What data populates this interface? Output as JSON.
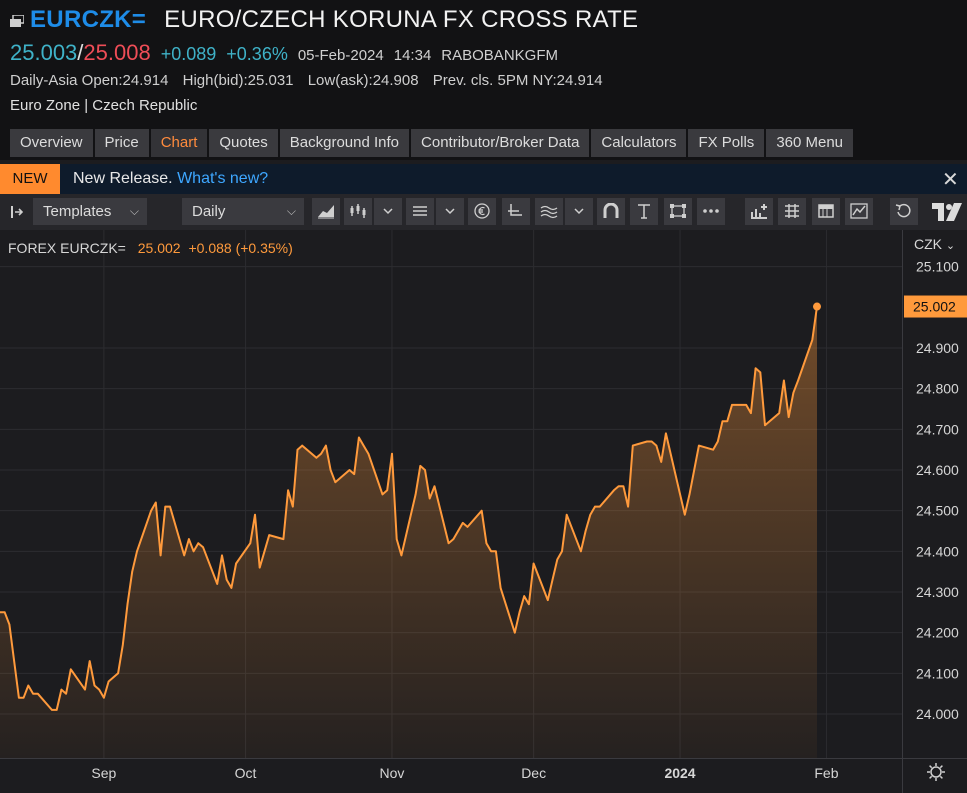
{
  "header": {
    "ric": "EURCZK=",
    "description": "EURO/CZECH KORUNA FX CROSS RATE",
    "bid": "25.003",
    "slash": "/",
    "ask": "25.008",
    "net_change": "+0.089",
    "pct_change": "+0.36%",
    "date": "05-Feb-2024",
    "time": "14:34",
    "source": "RABOBANKGFM",
    "daily_open": "Daily-Asia Open:24.914",
    "high": "High(bid):25.031",
    "low": "Low(ask):24.908",
    "prev_close": "Prev. cls. 5PM NY:24.914",
    "region": "Euro Zone | Czech Republic"
  },
  "tabs": [
    {
      "label": "Overview"
    },
    {
      "label": "Price"
    },
    {
      "label": "Chart",
      "active": true
    },
    {
      "label": "Quotes"
    },
    {
      "label": "Background Info"
    },
    {
      "label": "Contributor/Broker Data"
    },
    {
      "label": "Calculators"
    },
    {
      "label": "FX Polls"
    },
    {
      "label": "360 Menu"
    }
  ],
  "banner": {
    "badge": "NEW",
    "text": "New Release.",
    "link": "What's new?",
    "close": "✕"
  },
  "toolbar": {
    "templates_label": "Templates",
    "interval_label": "Daily"
  },
  "legend": {
    "name": "FOREX EURCZK=",
    "value": "25.002",
    "change": "+0.088 (+0.35%)"
  },
  "currency_label": "CZK",
  "colors": {
    "line": "#ff9a3c",
    "last_badge": "#ff9a3c",
    "bid": "#3fb2c8",
    "ask": "#ef4d57",
    "ric": "#1e8ce8",
    "active_tab": "#ff8b3d"
  },
  "chart_data": {
    "type": "area",
    "title": "",
    "xlabel": "",
    "ylabel": "",
    "currency": "CZK",
    "ylim": [
      23.93,
      25.14
    ],
    "yticks": [
      24.0,
      24.1,
      24.2,
      24.3,
      24.4,
      24.5,
      24.6,
      24.7,
      24.8,
      24.9,
      25.1
    ],
    "ytick_labels": [
      "24.000",
      "24.100",
      "24.200",
      "24.300",
      "24.400",
      "24.500",
      "24.600",
      "24.700",
      "24.800",
      "24.900",
      "25.100"
    ],
    "xlim": [
      "2023-08-10",
      "2024-02-17"
    ],
    "xticks": [
      {
        "date": "2023-09-01",
        "label": "Sep"
      },
      {
        "date": "2023-10-01",
        "label": "Oct"
      },
      {
        "date": "2023-11-01",
        "label": "Nov"
      },
      {
        "date": "2023-12-01",
        "label": "Dec"
      },
      {
        "date": "2024-01-01",
        "label": "2024"
      },
      {
        "date": "2024-02-01",
        "label": "Feb"
      }
    ],
    "last_value_label": "25.002",
    "series": [
      {
        "values": [
          [
            "2023-08-10",
            24.25
          ],
          [
            "2023-08-11",
            24.25
          ],
          [
            "2023-08-12",
            24.22
          ],
          [
            "2023-08-14",
            24.04
          ],
          [
            "2023-08-15",
            24.04
          ],
          [
            "2023-08-16",
            24.07
          ],
          [
            "2023-08-17",
            24.05
          ],
          [
            "2023-08-18",
            24.05
          ],
          [
            "2023-08-21",
            24.01
          ],
          [
            "2023-08-22",
            24.01
          ],
          [
            "2023-08-23",
            24.06
          ],
          [
            "2023-08-24",
            24.05
          ],
          [
            "2023-08-25",
            24.11
          ],
          [
            "2023-08-28",
            24.06
          ],
          [
            "2023-08-29",
            24.13
          ],
          [
            "2023-08-30",
            24.07
          ],
          [
            "2023-08-31",
            24.06
          ],
          [
            "2023-09-01",
            24.04
          ],
          [
            "2023-09-02",
            24.08
          ],
          [
            "2023-09-04",
            24.1
          ],
          [
            "2023-09-05",
            24.17
          ],
          [
            "2023-09-06",
            24.27
          ],
          [
            "2023-09-07",
            24.35
          ],
          [
            "2023-09-08",
            24.4
          ],
          [
            "2023-09-11",
            24.5
          ],
          [
            "2023-09-12",
            24.52
          ],
          [
            "2023-09-13",
            24.39
          ],
          [
            "2023-09-14",
            24.51
          ],
          [
            "2023-09-15",
            24.51
          ],
          [
            "2023-09-18",
            24.39
          ],
          [
            "2023-09-19",
            24.43
          ],
          [
            "2023-09-20",
            24.4
          ],
          [
            "2023-09-21",
            24.42
          ],
          [
            "2023-09-22",
            24.41
          ],
          [
            "2023-09-25",
            24.32
          ],
          [
            "2023-09-26",
            24.39
          ],
          [
            "2023-09-27",
            24.33
          ],
          [
            "2023-09-28",
            24.31
          ],
          [
            "2023-09-29",
            24.37
          ],
          [
            "2023-10-02",
            24.42
          ],
          [
            "2023-10-03",
            24.49
          ],
          [
            "2023-10-04",
            24.36
          ],
          [
            "2023-10-05",
            24.4
          ],
          [
            "2023-10-06",
            24.44
          ],
          [
            "2023-10-09",
            24.43
          ],
          [
            "2023-10-10",
            24.55
          ],
          [
            "2023-10-11",
            24.51
          ],
          [
            "2023-10-12",
            24.65
          ],
          [
            "2023-10-13",
            24.66
          ],
          [
            "2023-10-16",
            24.63
          ],
          [
            "2023-10-17",
            24.64
          ],
          [
            "2023-10-18",
            24.66
          ],
          [
            "2023-10-19",
            24.6
          ],
          [
            "2023-10-20",
            24.57
          ],
          [
            "2023-10-23",
            24.6
          ],
          [
            "2023-10-24",
            24.59
          ],
          [
            "2023-10-25",
            24.68
          ],
          [
            "2023-10-26",
            24.66
          ],
          [
            "2023-10-27",
            24.64
          ],
          [
            "2023-10-30",
            24.54
          ],
          [
            "2023-10-31",
            24.55
          ],
          [
            "2023-11-01",
            24.64
          ],
          [
            "2023-11-02",
            24.43
          ],
          [
            "2023-11-03",
            24.39
          ],
          [
            "2023-11-06",
            24.54
          ],
          [
            "2023-11-07",
            24.61
          ],
          [
            "2023-11-08",
            24.6
          ],
          [
            "2023-11-09",
            24.53
          ],
          [
            "2023-11-10",
            24.56
          ],
          [
            "2023-11-13",
            24.42
          ],
          [
            "2023-11-14",
            24.43
          ],
          [
            "2023-11-15",
            24.45
          ],
          [
            "2023-11-16",
            24.47
          ],
          [
            "2023-11-17",
            24.46
          ],
          [
            "2023-11-20",
            24.5
          ],
          [
            "2023-11-21",
            24.42
          ],
          [
            "2023-11-22",
            24.4
          ],
          [
            "2023-11-23",
            24.4
          ],
          [
            "2023-11-24",
            24.31
          ],
          [
            "2023-11-27",
            24.2
          ],
          [
            "2023-11-28",
            24.25
          ],
          [
            "2023-11-29",
            24.29
          ],
          [
            "2023-11-30",
            24.27
          ],
          [
            "2023-12-01",
            24.37
          ],
          [
            "2023-12-04",
            24.28
          ],
          [
            "2023-12-05",
            24.33
          ],
          [
            "2023-12-06",
            24.38
          ],
          [
            "2023-12-07",
            24.4
          ],
          [
            "2023-12-08",
            24.49
          ],
          [
            "2023-12-11",
            24.4
          ],
          [
            "2023-12-12",
            24.45
          ],
          [
            "2023-12-13",
            24.49
          ],
          [
            "2023-12-14",
            24.51
          ],
          [
            "2023-12-15",
            24.51
          ],
          [
            "2023-12-18",
            24.55
          ],
          [
            "2023-12-19",
            24.56
          ],
          [
            "2023-12-20",
            24.56
          ],
          [
            "2023-12-21",
            24.51
          ],
          [
            "2023-12-22",
            24.66
          ],
          [
            "2023-12-25",
            24.67
          ],
          [
            "2023-12-26",
            24.67
          ],
          [
            "2023-12-27",
            24.66
          ],
          [
            "2023-12-28",
            24.62
          ],
          [
            "2023-12-29",
            24.69
          ],
          [
            "2024-01-02",
            24.49
          ],
          [
            "2024-01-03",
            24.54
          ],
          [
            "2024-01-04",
            24.6
          ],
          [
            "2024-01-05",
            24.66
          ],
          [
            "2024-01-08",
            24.65
          ],
          [
            "2024-01-09",
            24.67
          ],
          [
            "2024-01-10",
            24.72
          ],
          [
            "2024-01-11",
            24.72
          ],
          [
            "2024-01-12",
            24.76
          ],
          [
            "2024-01-15",
            24.76
          ],
          [
            "2024-01-16",
            24.74
          ],
          [
            "2024-01-17",
            24.85
          ],
          [
            "2024-01-18",
            24.84
          ],
          [
            "2024-01-19",
            24.71
          ],
          [
            "2024-01-22",
            24.74
          ],
          [
            "2024-01-23",
            24.82
          ],
          [
            "2024-01-24",
            24.73
          ],
          [
            "2024-01-25",
            24.79
          ],
          [
            "2024-01-26",
            24.82
          ],
          [
            "2024-01-29",
            24.92
          ],
          [
            "2024-01-30",
            25.002
          ]
        ]
      }
    ]
  }
}
